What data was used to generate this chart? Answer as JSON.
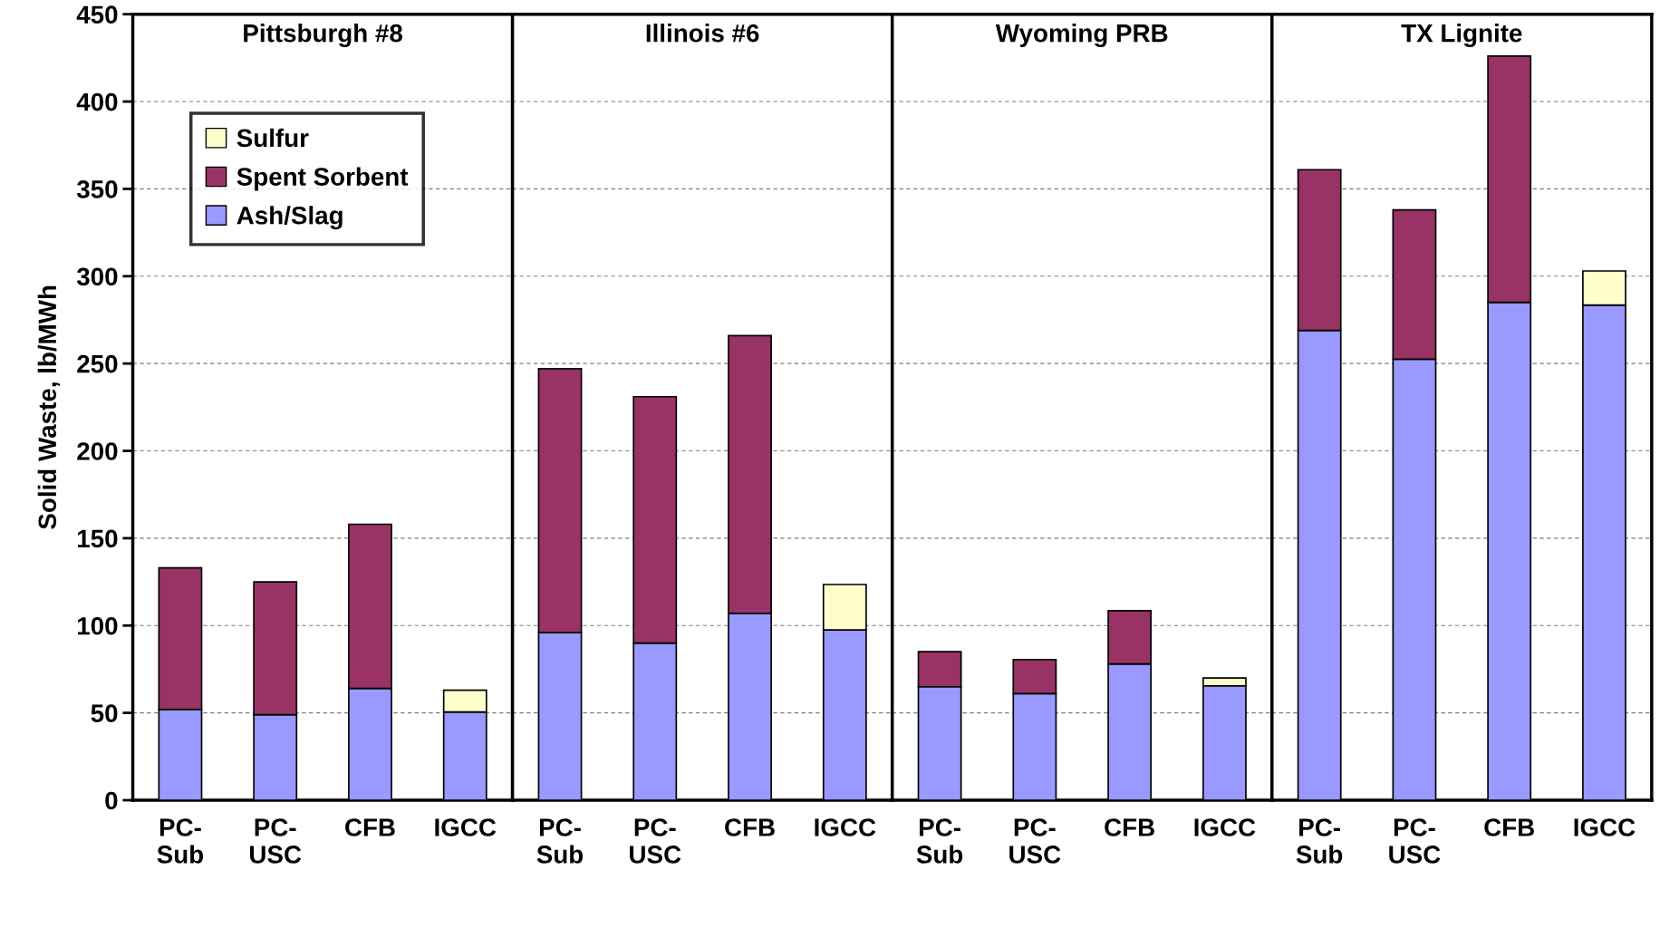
{
  "chart_data": [
    {
      "type": "bar",
      "stacked": true,
      "title": "Pittsburgh #8",
      "ylabel": "Solid Waste, lb/MWh",
      "categories": [
        "PC-\nSub",
        "PC-\nUSC",
        "CFB",
        "IGCC"
      ],
      "ylim": [
        0,
        450
      ],
      "yticks": [
        0,
        50,
        100,
        150,
        200,
        250,
        300,
        350,
        400,
        450
      ],
      "grid": "y",
      "legend": "top left",
      "series": [
        {
          "name": "Ash/Slag",
          "color": "#9999ff",
          "values": [
            52,
            49,
            64,
            50.5
          ]
        },
        {
          "name": "Spent Sorbent",
          "color": "#993366",
          "values": [
            81,
            76,
            94,
            null
          ]
        },
        {
          "name": "Sulfur",
          "color": "#ffffcc",
          "values": [
            null,
            null,
            null,
            12.5
          ]
        }
      ]
    },
    {
      "type": "bar",
      "stacked": true,
      "title": "Illinois #6",
      "categories": [
        "PC-\nSub",
        "PC-\nUSC",
        "CFB",
        "IGCC"
      ],
      "ylim": [
        0,
        450
      ],
      "yticks": [
        0,
        50,
        100,
        150,
        200,
        250,
        300,
        350,
        400,
        450
      ],
      "grid": "y",
      "tick_labels": "x",
      "series": [
        {
          "color": "#9999ff",
          "values": [
            96,
            90,
            107,
            97.5
          ]
        },
        {
          "color": "#993366",
          "values": [
            151,
            141,
            159,
            null
          ]
        },
        {
          "color": "#ffffcc",
          "values": [
            null,
            null,
            null,
            26
          ]
        }
      ]
    },
    {
      "type": "bar",
      "stacked": true,
      "title": "Wyoming PRB",
      "categories": [
        "PC-\nSub",
        "PC-\nUSC",
        "CFB",
        "IGCC"
      ],
      "ylim": [
        0,
        450
      ],
      "yticks": [
        0,
        50,
        100,
        150,
        200,
        250,
        300,
        350,
        400,
        450
      ],
      "grid": "y",
      "tick_labels": "x",
      "series": [
        {
          "color": "#9999ff",
          "values": [
            65,
            61,
            78,
            65.5
          ]
        },
        {
          "color": "#993366",
          "values": [
            20,
            19.5,
            30.5,
            null
          ]
        },
        {
          "color": "#ffffcc",
          "values": [
            null,
            null,
            null,
            4.5
          ]
        }
      ]
    },
    {
      "type": "bar",
      "stacked": true,
      "title": "TX Lignite",
      "categories": [
        "PC-\nSub",
        "PC-\nUSC",
        "CFB",
        "IGCC"
      ],
      "ylim": [
        0,
        450
      ],
      "yticks": [
        0,
        50,
        100,
        150,
        200,
        250,
        300,
        350,
        400,
        450
      ],
      "grid": "y",
      "tick_labels": "x",
      "series": [
        {
          "color": "#9999ff",
          "values": [
            269,
            252.5,
            285,
            283.5
          ]
        },
        {
          "color": "#993366",
          "values": [
            92,
            85.5,
            141,
            null
          ]
        },
        {
          "color": "#ffffcc",
          "values": [
            null,
            null,
            null,
            19.5
          ]
        }
      ]
    }
  ]
}
